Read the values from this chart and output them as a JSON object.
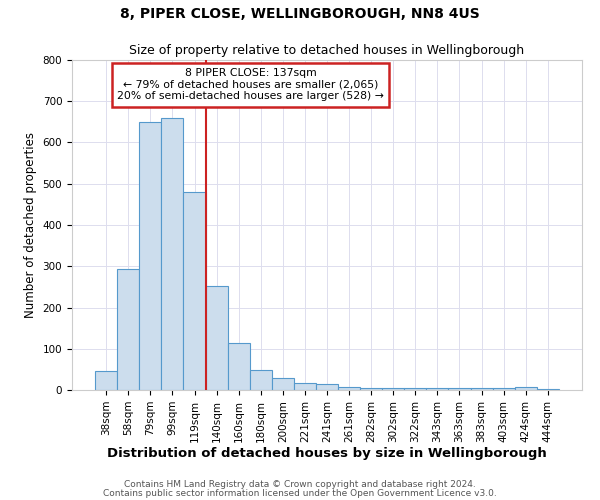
{
  "title1": "8, PIPER CLOSE, WELLINGBOROUGH, NN8 4US",
  "title2": "Size of property relative to detached houses in Wellingborough",
  "xlabel": "Distribution of detached houses by size in Wellingborough",
  "ylabel": "Number of detached properties",
  "categories": [
    "38sqm",
    "58sqm",
    "79sqm",
    "99sqm",
    "119sqm",
    "140sqm",
    "160sqm",
    "180sqm",
    "200sqm",
    "221sqm",
    "241sqm",
    "261sqm",
    "282sqm",
    "302sqm",
    "322sqm",
    "343sqm",
    "363sqm",
    "383sqm",
    "403sqm",
    "424sqm",
    "444sqm"
  ],
  "values": [
    45,
    293,
    650,
    660,
    480,
    253,
    115,
    48,
    28,
    17,
    15,
    8,
    5,
    4,
    4,
    4,
    4,
    4,
    4,
    7,
    2
  ],
  "bar_color": "#ccdded",
  "bar_edge_color": "#5599cc",
  "annotation_box_text": "8 PIPER CLOSE: 137sqm\n← 79% of detached houses are smaller (2,065)\n20% of semi-detached houses are larger (528) →",
  "annotation_box_color": "#ffffff",
  "annotation_box_edge_color": "#cc2222",
  "red_line_index": 5,
  "footer1": "Contains HM Land Registry data © Crown copyright and database right 2024.",
  "footer2": "Contains public sector information licensed under the Open Government Licence v3.0.",
  "ylim": [
    0,
    800
  ],
  "yticks": [
    0,
    100,
    200,
    300,
    400,
    500,
    600,
    700,
    800
  ],
  "bg_color": "#ffffff",
  "grid_color": "#ddddee",
  "title1_fontsize": 10,
  "title2_fontsize": 9,
  "xlabel_fontsize": 9.5,
  "ylabel_fontsize": 8.5,
  "tick_fontsize": 7.5,
  "footer_fontsize": 6.5
}
